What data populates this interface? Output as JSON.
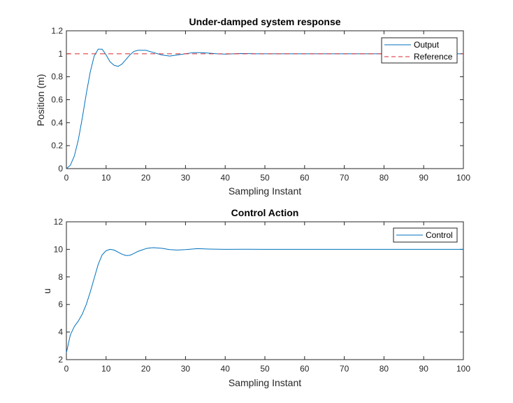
{
  "chart_data": [
    {
      "type": "line",
      "title": "Under-damped system response",
      "xlabel": "Sampling Instant",
      "ylabel": "Position (m)",
      "xlim": [
        0,
        100
      ],
      "ylim": [
        0,
        1.2
      ],
      "xticks": [
        "0",
        "10",
        "20",
        "30",
        "40",
        "50",
        "60",
        "70",
        "80",
        "90",
        "100"
      ],
      "yticks": [
        "0",
        "0.2",
        "0.4",
        "0.6",
        "0.8",
        "1",
        "1.2"
      ],
      "grid": false,
      "legend_position": "top-right",
      "series": [
        {
          "name": "Output",
          "color": "#0072BD",
          "style": "solid",
          "x": [
            0,
            1,
            2,
            3,
            4,
            5,
            6,
            7,
            8,
            9,
            10,
            11,
            12,
            13,
            14,
            15,
            16,
            17,
            18,
            19,
            20,
            22,
            24,
            26,
            28,
            30,
            32,
            34,
            36,
            38,
            40,
            42,
            44,
            46,
            48,
            50,
            55,
            60,
            70,
            80,
            90,
            100
          ],
          "y": [
            0,
            0.03,
            0.11,
            0.25,
            0.44,
            0.65,
            0.84,
            0.98,
            1.04,
            1.04,
            0.99,
            0.93,
            0.9,
            0.89,
            0.91,
            0.95,
            0.99,
            1.02,
            1.03,
            1.03,
            1.03,
            1.01,
            0.99,
            0.98,
            0.99,
            1.0,
            1.01,
            1.01,
            1.005,
            1.0,
            0.997,
            1.0,
            1.002,
            1.001,
            1.0,
            1.0,
            1.0,
            1.0,
            1.0,
            1.0,
            1.0,
            1.0
          ]
        },
        {
          "name": "Reference",
          "color": "#D9272E",
          "style": "dashed",
          "x": [
            0,
            100
          ],
          "y": [
            1,
            1
          ]
        }
      ]
    },
    {
      "type": "line",
      "title": "Control Action",
      "xlabel": "Sampling Instant",
      "ylabel": "u",
      "xlim": [
        0,
        100
      ],
      "ylim": [
        2,
        12
      ],
      "xticks": [
        "0",
        "10",
        "20",
        "30",
        "40",
        "50",
        "60",
        "70",
        "80",
        "90",
        "100"
      ],
      "yticks": [
        "2",
        "4",
        "6",
        "8",
        "10",
        "12"
      ],
      "grid": false,
      "legend_position": "top-right",
      "series": [
        {
          "name": "Control",
          "color": "#0072BD",
          "style": "solid",
          "x": [
            0,
            1,
            2,
            3,
            4,
            5,
            6,
            7,
            8,
            9,
            10,
            11,
            12,
            13,
            14,
            15,
            16,
            17,
            18,
            19,
            20,
            21,
            22,
            24,
            26,
            28,
            30,
            33,
            36,
            40,
            45,
            50,
            60,
            70,
            80,
            90,
            100
          ],
          "y": [
            2.5,
            3.8,
            4.4,
            4.8,
            5.3,
            6.0,
            6.9,
            7.9,
            8.9,
            9.6,
            9.9,
            10.0,
            9.95,
            9.8,
            9.65,
            9.55,
            9.57,
            9.7,
            9.85,
            9.95,
            10.05,
            10.1,
            10.12,
            10.08,
            9.98,
            9.95,
            9.98,
            10.05,
            10.02,
            10.0,
            10.01,
            10.0,
            10.0,
            10.0,
            10.0,
            10.0,
            10.0
          ]
        }
      ]
    }
  ]
}
